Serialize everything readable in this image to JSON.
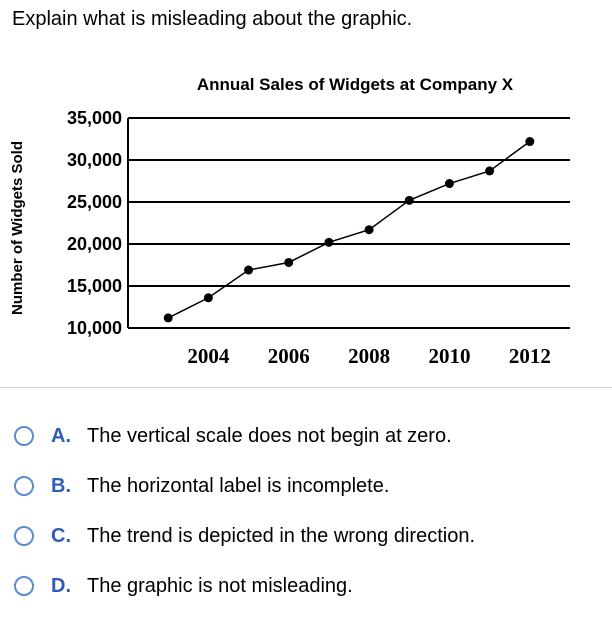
{
  "question": "Explain what is misleading about the graphic.",
  "chart_data": {
    "type": "line",
    "title": "Annual Sales of Widgets at Company X",
    "ylabel": "Number of Widgets Sold",
    "xlabel": "",
    "y_ticks": [
      "35,000",
      "30,000",
      "25,000",
      "20,000",
      "15,000",
      "10,000"
    ],
    "y_tick_values": [
      35000,
      30000,
      25000,
      20000,
      15000,
      10000
    ],
    "x_ticks": [
      "2004",
      "2006",
      "2008",
      "2010",
      "2012"
    ],
    "x_tick_values": [
      2004,
      2006,
      2008,
      2010,
      2012
    ],
    "ylim": [
      10000,
      35000
    ],
    "xlim": [
      2002,
      2013
    ],
    "grid": "horizontal",
    "x": [
      2003,
      2004,
      2005,
      2006,
      2007,
      2008,
      2009,
      2010,
      2011,
      2012
    ],
    "values": [
      11200,
      13600,
      16900,
      17800,
      20200,
      21700,
      25200,
      27200,
      28700,
      32200
    ],
    "colors": {
      "line": "#000000",
      "grid": "#000000",
      "axis": "#000000"
    }
  },
  "choices": [
    {
      "letter": "A.",
      "text": "The vertical scale does not begin at zero."
    },
    {
      "letter": "B.",
      "text": "The horizontal label is incomplete."
    },
    {
      "letter": "C.",
      "text": "The trend is depicted in the wrong direction."
    },
    {
      "letter": "D.",
      "text": "The graphic is not misleading."
    }
  ],
  "accent_color": "#2f5db4"
}
